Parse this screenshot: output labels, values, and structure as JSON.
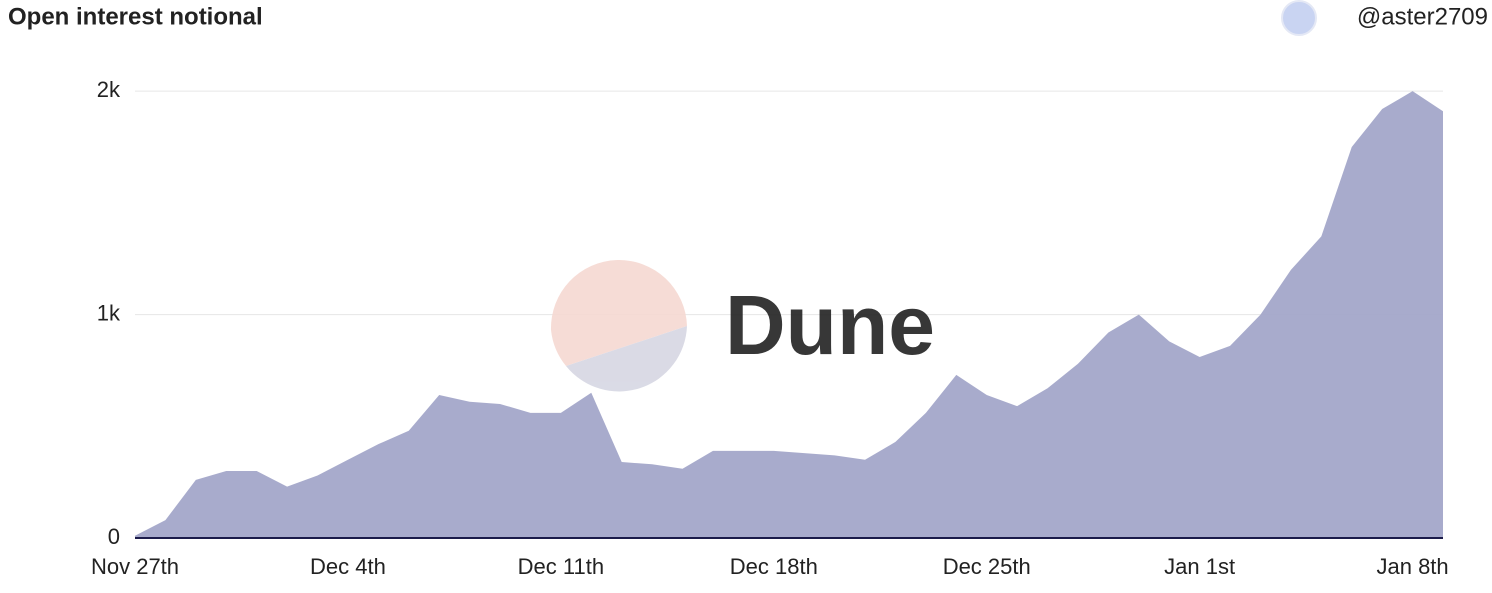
{
  "chart_data": {
    "type": "area",
    "title": "Open interest notional",
    "author": "@aster2709",
    "watermark": "Dune",
    "categories": [
      "Nov 27th",
      null,
      null,
      null,
      null,
      null,
      null,
      "Dec 4th",
      null,
      null,
      null,
      null,
      null,
      null,
      "Dec 11th",
      null,
      null,
      null,
      null,
      null,
      null,
      "Dec 18th",
      null,
      null,
      null,
      null,
      null,
      null,
      "Dec 25th",
      null,
      null,
      null,
      null,
      null,
      null,
      "Jan 1st",
      null,
      null,
      null,
      null,
      null,
      null,
      "Jan 8th",
      null
    ],
    "values": [
      10,
      80,
      260,
      300,
      300,
      230,
      280,
      350,
      420,
      480,
      640,
      610,
      600,
      560,
      560,
      650,
      340,
      330,
      310,
      390,
      390,
      390,
      380,
      370,
      350,
      430,
      560,
      730,
      640,
      590,
      670,
      780,
      920,
      1000,
      880,
      810,
      860,
      1000,
      1200,
      1350,
      1750,
      1920,
      2000,
      1910
    ],
    "color": "#a3a7c9",
    "ylim": [
      0,
      2050
    ],
    "yticks": [
      0,
      {
        "value": 1000,
        "label": "1k"
      },
      {
        "value": 2000,
        "label": "2k"
      }
    ],
    "grid": true
  }
}
